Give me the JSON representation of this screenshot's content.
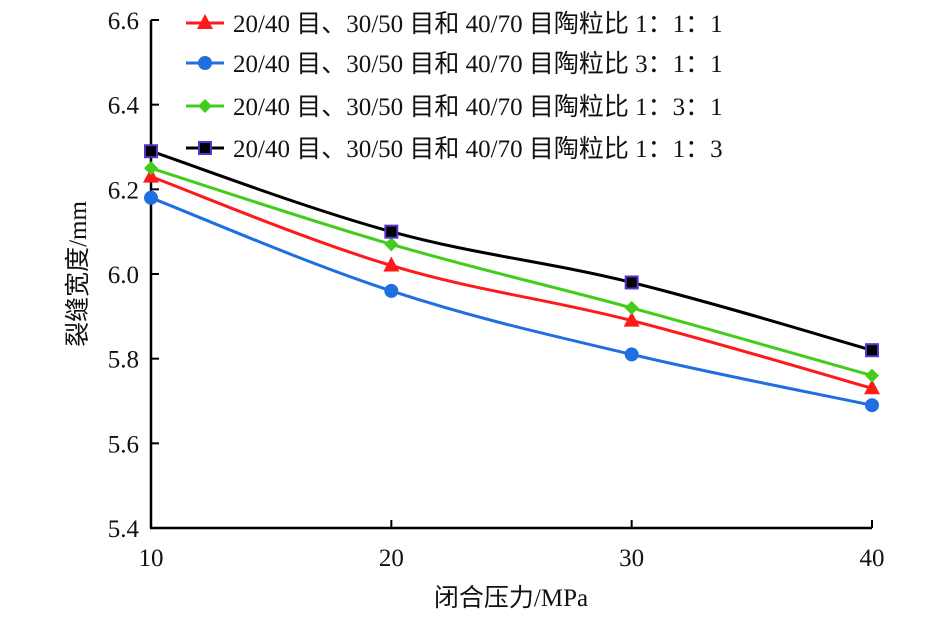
{
  "chart_data": {
    "type": "line",
    "title": "",
    "xlabel": "闭合压力/MPa",
    "ylabel": "裂缝宽度/mm",
    "x": [
      10,
      20,
      30,
      40
    ],
    "xlim": [
      10,
      40
    ],
    "ylim": [
      5.4,
      6.6
    ],
    "xticks": [
      "10",
      "20",
      "30",
      "40"
    ],
    "yticks": [
      "5.4",
      "5.6",
      "5.8",
      "6.0",
      "6.2",
      "6.4",
      "6.6"
    ],
    "grid": false,
    "legend_position": "top-right",
    "series": [
      {
        "name": "20/40 目、30/50 目和 40/70 目陶粒比 1：1：1",
        "color": "#ff1a1a",
        "marker": "triangle",
        "values": [
          6.23,
          6.02,
          5.89,
          5.73
        ]
      },
      {
        "name": "20/40 目、30/50 目和 40/70 目陶粒比 3：1：1",
        "color": "#1f6fe0",
        "marker": "circle",
        "values": [
          6.18,
          5.96,
          5.81,
          5.69
        ]
      },
      {
        "name": "20/40 目、30/50 目和 40/70 目陶粒比 1：3：1",
        "color": "#44cc1c",
        "marker": "diamond",
        "values": [
          6.25,
          6.07,
          5.92,
          5.76
        ]
      },
      {
        "name": "20/40 目、30/50 目和 40/70 目陶粒比 1：1：3",
        "color": "#000000",
        "marker": "square",
        "marker_edge": "#5533cc",
        "values": [
          6.29,
          6.1,
          5.98,
          5.82
        ]
      }
    ]
  }
}
